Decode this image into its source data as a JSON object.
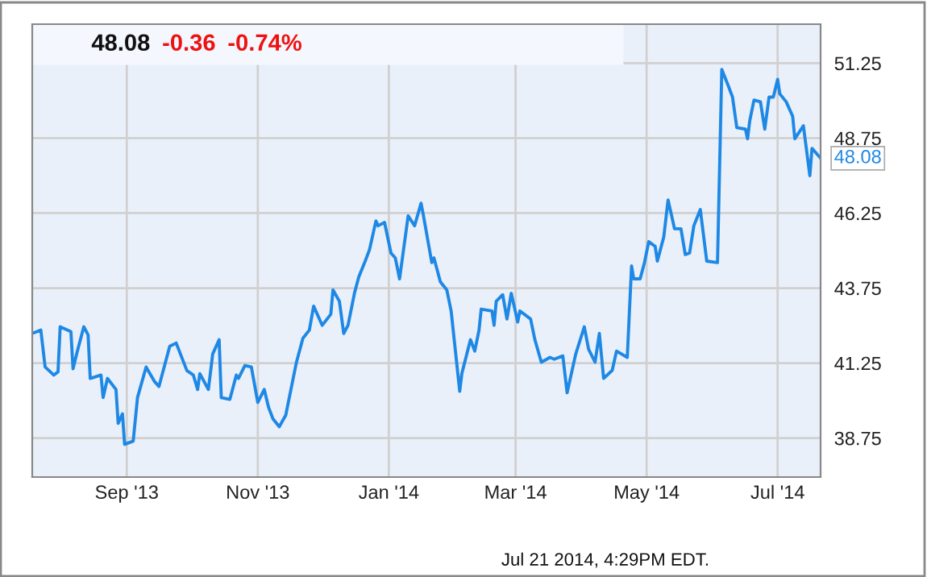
{
  "chart_data": {
    "type": "line",
    "grid": true,
    "legend": false,
    "marker": "none",
    "line_style": "solid",
    "xlim": [
      "2013-07-19",
      "2014-07-21"
    ],
    "ylim": [
      37.45,
      52.55
    ],
    "xticks": [
      {
        "value": "2013-09-01",
        "label": "Sep '13"
      },
      {
        "value": "2013-11-01",
        "label": "Nov '13"
      },
      {
        "value": "2014-01-01",
        "label": "Jan '14"
      },
      {
        "value": "2014-03-01",
        "label": "Mar '14"
      },
      {
        "value": "2014-05-01",
        "label": "May '14"
      },
      {
        "value": "2014-07-01",
        "label": "Jul '14"
      }
    ],
    "yticks": [
      38.75,
      41.25,
      43.75,
      46.25,
      48.75,
      51.25
    ],
    "annotations": [
      "48.08",
      "-0.36",
      "-0.74%",
      {
        "text": "48.08",
        "x": "2014-07-21",
        "y": 48.08
      },
      "Jul 21 2014, 4:29PM EDT."
    ],
    "series": [
      {
        "color": "#1e88e5",
        "x": [
          "2013-07-19",
          "2013-07-23",
          "2013-07-25",
          "2013-07-29",
          "2013-07-31",
          "2013-08-01",
          "2013-08-06",
          "2013-08-07",
          "2013-08-09",
          "2013-08-12",
          "2013-08-14",
          "2013-08-15",
          "2013-08-20",
          "2013-08-21",
          "2013-08-23",
          "2013-08-27",
          "2013-08-28",
          "2013-08-30",
          "2013-08-31",
          "2013-09-04",
          "2013-09-06",
          "2013-09-10",
          "2013-09-14",
          "2013-09-16",
          "2013-09-21",
          "2013-09-24",
          "2013-09-29",
          "2013-10-02",
          "2013-10-04",
          "2013-10-05",
          "2013-10-09",
          "2013-10-11",
          "2013-10-14",
          "2013-10-15",
          "2013-10-19",
          "2013-10-22",
          "2013-10-23",
          "2013-10-26",
          "2013-10-29",
          "2013-11-01",
          "2013-11-04",
          "2013-11-06",
          "2013-11-08",
          "2013-11-11",
          "2013-11-14",
          "2013-11-19",
          "2013-11-22",
          "2013-11-25",
          "2013-11-27",
          "2013-12-01",
          "2013-12-05",
          "2013-12-06",
          "2013-12-09",
          "2013-12-11",
          "2013-12-13",
          "2013-12-16",
          "2013-12-18",
          "2013-12-21",
          "2013-12-23",
          "2013-12-26",
          "2013-12-27",
          "2013-12-30",
          "2014-01-02",
          "2014-01-04",
          "2014-01-06",
          "2014-01-10",
          "2014-01-13",
          "2014-01-16",
          "2014-01-17",
          "2014-01-21",
          "2014-01-22",
          "2014-01-25",
          "2014-01-28",
          "2014-01-30",
          "2014-02-03",
          "2014-02-04",
          "2014-02-08",
          "2014-02-10",
          "2014-02-12",
          "2014-02-13",
          "2014-02-18",
          "2014-02-19",
          "2014-02-20",
          "2014-02-23",
          "2014-02-25",
          "2014-02-27",
          "2014-03-02",
          "2014-03-03",
          "2014-03-08",
          "2014-03-10",
          "2014-03-13",
          "2014-03-17",
          "2014-03-19",
          "2014-03-23",
          "2014-03-25",
          "2014-03-29",
          "2014-04-02",
          "2014-04-04",
          "2014-04-07",
          "2014-04-09",
          "2014-04-11",
          "2014-04-15",
          "2014-04-17",
          "2014-04-22",
          "2014-04-24",
          "2014-04-25",
          "2014-04-28",
          "2014-04-30",
          "2014-05-02",
          "2014-05-05",
          "2014-05-06",
          "2014-05-09",
          "2014-05-11",
          "2014-05-14",
          "2014-05-17",
          "2014-05-19",
          "2014-05-21",
          "2014-05-23",
          "2014-05-26",
          "2014-05-29",
          "2014-06-03",
          "2014-06-05",
          "2014-06-08",
          "2014-06-10",
          "2014-06-12",
          "2014-06-16",
          "2014-06-17",
          "2014-06-18",
          "2014-06-20",
          "2014-06-23",
          "2014-06-25",
          "2014-06-27",
          "2014-06-29",
          "2014-07-01",
          "2014-07-02",
          "2014-07-05",
          "2014-07-08",
          "2014-07-09",
          "2014-07-13",
          "2014-07-16",
          "2014-07-17",
          "2014-07-21"
        ],
        "values": [
          42.24,
          42.35,
          41.12,
          40.85,
          40.96,
          42.46,
          42.3,
          41.06,
          41.65,
          42.46,
          42.19,
          40.74,
          40.85,
          40.1,
          40.74,
          40.37,
          39.24,
          39.56,
          38.54,
          38.65,
          40.1,
          41.12,
          40.63,
          40.47,
          41.81,
          41.92,
          41.0,
          40.85,
          40.37,
          40.9,
          40.37,
          41.55,
          42.03,
          40.1,
          40.04,
          40.85,
          40.74,
          41.17,
          41.12,
          39.94,
          40.37,
          39.78,
          39.4,
          39.13,
          39.51,
          41.28,
          42.08,
          42.35,
          43.15,
          42.51,
          42.88,
          43.69,
          43.31,
          42.24,
          42.51,
          43.58,
          44.12,
          44.65,
          45.03,
          45.99,
          45.83,
          45.94,
          44.92,
          44.76,
          44.06,
          46.16,
          45.83,
          46.58,
          46.21,
          44.6,
          44.76,
          43.96,
          43.69,
          42.99,
          40.31,
          40.9,
          42.03,
          41.65,
          42.35,
          43.05,
          42.99,
          42.51,
          43.31,
          43.53,
          42.72,
          43.58,
          42.62,
          42.99,
          42.72,
          42.03,
          41.28,
          41.44,
          41.38,
          41.49,
          40.26,
          41.55,
          42.46,
          41.71,
          41.28,
          42.24,
          40.74,
          41.01,
          41.65,
          41.44,
          44.49,
          44.06,
          44.06,
          44.6,
          45.3,
          45.14,
          44.65,
          45.46,
          46.69,
          45.73,
          45.73,
          44.87,
          44.92,
          45.83,
          46.37,
          44.65,
          44.6,
          51.04,
          50.5,
          50.12,
          49.1,
          49.05,
          48.73,
          49.32,
          50.02,
          49.96,
          49.05,
          50.12,
          50.12,
          50.71,
          50.23,
          49.96,
          49.48,
          48.73,
          49.16,
          47.5,
          48.41,
          48.08
        ]
      }
    ]
  }
}
